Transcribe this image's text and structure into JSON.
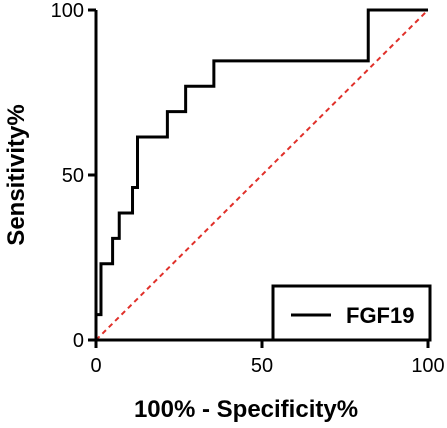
{
  "chart_data": {
    "type": "line",
    "title": "",
    "xlabel": "100% - Specificity%",
    "ylabel": "Sensitivity%",
    "xlim": [
      0,
      100
    ],
    "ylim": [
      0,
      100
    ],
    "x_ticks": [
      0,
      50,
      100
    ],
    "y_ticks": [
      0,
      50,
      100
    ],
    "grid": false,
    "legend_position": "bottom-right",
    "series": [
      {
        "name": "FGF19",
        "color": "#000000",
        "step": true,
        "x": [
          0,
          1.5,
          1.5,
          5,
          5,
          7,
          7,
          11,
          11,
          12.5,
          12.5,
          21.5,
          21.5,
          27,
          27,
          35.5,
          35.5,
          82,
          82,
          100
        ],
        "y": [
          7.7,
          7.7,
          23.1,
          23.1,
          30.8,
          30.8,
          38.5,
          38.5,
          46.2,
          46.2,
          61.5,
          61.5,
          69.2,
          69.2,
          76.9,
          76.9,
          84.6,
          84.6,
          100,
          100
        ]
      }
    ],
    "reference_line": {
      "x": [
        0,
        100
      ],
      "y": [
        0,
        100
      ],
      "color": "#e0302a",
      "style": "dashed"
    }
  }
}
